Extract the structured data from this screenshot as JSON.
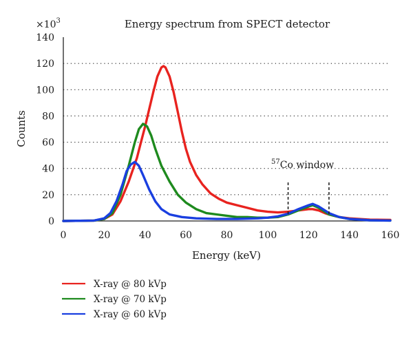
{
  "chart_data": {
    "type": "line",
    "title": "Energy spectrum from SPECT detector",
    "xlabel": "Energy (keV)",
    "ylabel": "Counts",
    "y_multiplier_label": "×10",
    "y_multiplier_exponent": "3",
    "xlim": [
      0,
      160
    ],
    "ylim": [
      0,
      140
    ],
    "x_ticks": [
      0,
      20,
      40,
      60,
      80,
      100,
      120,
      140,
      160
    ],
    "y_ticks": [
      0,
      20,
      40,
      60,
      80,
      100,
      120,
      140
    ],
    "grid": "horizontal dotted",
    "legend_position": "bottom-left",
    "annotation": {
      "superscript": "57",
      "text": "Co window",
      "window_keV": [
        110,
        130
      ]
    },
    "series": [
      {
        "name": "X-ray @ 80 kVp",
        "color": "#e8231f",
        "points": [
          [
            0,
            0
          ],
          [
            15,
            0.3
          ],
          [
            20,
            1.5
          ],
          [
            24,
            5
          ],
          [
            28,
            15
          ],
          [
            32,
            30
          ],
          [
            36,
            48
          ],
          [
            38,
            60
          ],
          [
            40,
            72
          ],
          [
            42,
            85
          ],
          [
            44,
            98
          ],
          [
            46,
            110
          ],
          [
            48,
            117
          ],
          [
            49,
            118
          ],
          [
            50,
            117
          ],
          [
            52,
            110
          ],
          [
            54,
            98
          ],
          [
            56,
            83
          ],
          [
            58,
            68
          ],
          [
            60,
            55
          ],
          [
            62,
            45
          ],
          [
            65,
            35
          ],
          [
            68,
            28
          ],
          [
            72,
            21
          ],
          [
            76,
            17
          ],
          [
            80,
            14
          ],
          [
            85,
            12
          ],
          [
            90,
            10
          ],
          [
            95,
            8
          ],
          [
            100,
            7
          ],
          [
            105,
            6.5
          ],
          [
            110,
            7
          ],
          [
            115,
            8
          ],
          [
            120,
            9
          ],
          [
            122,
            9
          ],
          [
            125,
            8
          ],
          [
            128,
            6
          ],
          [
            130,
            5
          ],
          [
            135,
            3
          ],
          [
            140,
            2
          ],
          [
            150,
            1
          ],
          [
            160,
            0.8
          ]
        ]
      },
      {
        "name": "X-ray @ 70 kVp",
        "color": "#1e8a1e",
        "points": [
          [
            0,
            0
          ],
          [
            15,
            0.3
          ],
          [
            20,
            1.5
          ],
          [
            24,
            6
          ],
          [
            28,
            20
          ],
          [
            32,
            42
          ],
          [
            35,
            60
          ],
          [
            37,
            70
          ],
          [
            39,
            74
          ],
          [
            41,
            72
          ],
          [
            43,
            65
          ],
          [
            45,
            55
          ],
          [
            48,
            42
          ],
          [
            52,
            30
          ],
          [
            56,
            20
          ],
          [
            60,
            14
          ],
          [
            65,
            9
          ],
          [
            70,
            6
          ],
          [
            75,
            5
          ],
          [
            80,
            4
          ],
          [
            85,
            3
          ],
          [
            90,
            3
          ],
          [
            95,
            2.5
          ],
          [
            100,
            2.5
          ],
          [
            105,
            3
          ],
          [
            110,
            5
          ],
          [
            115,
            8
          ],
          [
            120,
            11
          ],
          [
            122,
            12
          ],
          [
            125,
            10
          ],
          [
            128,
            7
          ],
          [
            130,
            5
          ],
          [
            135,
            3
          ],
          [
            140,
            1.5
          ],
          [
            150,
            0.5
          ],
          [
            160,
            0.3
          ]
        ]
      },
      {
        "name": "X-ray @ 60 kVp",
        "color": "#1a3fe0",
        "points": [
          [
            0,
            0
          ],
          [
            15,
            0.3
          ],
          [
            20,
            2
          ],
          [
            23,
            6
          ],
          [
            26,
            15
          ],
          [
            29,
            28
          ],
          [
            31,
            38
          ],
          [
            33,
            43
          ],
          [
            35,
            45
          ],
          [
            37,
            42
          ],
          [
            39,
            35
          ],
          [
            42,
            24
          ],
          [
            45,
            15
          ],
          [
            48,
            9
          ],
          [
            52,
            5
          ],
          [
            58,
            3
          ],
          [
            65,
            2
          ],
          [
            75,
            1.5
          ],
          [
            85,
            1.5
          ],
          [
            95,
            2
          ],
          [
            100,
            2.5
          ],
          [
            105,
            3.5
          ],
          [
            110,
            5.5
          ],
          [
            115,
            9
          ],
          [
            120,
            12
          ],
          [
            122,
            13
          ],
          [
            125,
            11
          ],
          [
            128,
            8
          ],
          [
            130,
            6
          ],
          [
            135,
            3
          ],
          [
            140,
            1.5
          ],
          [
            150,
            0.5
          ],
          [
            160,
            0.3
          ]
        ]
      }
    ]
  }
}
